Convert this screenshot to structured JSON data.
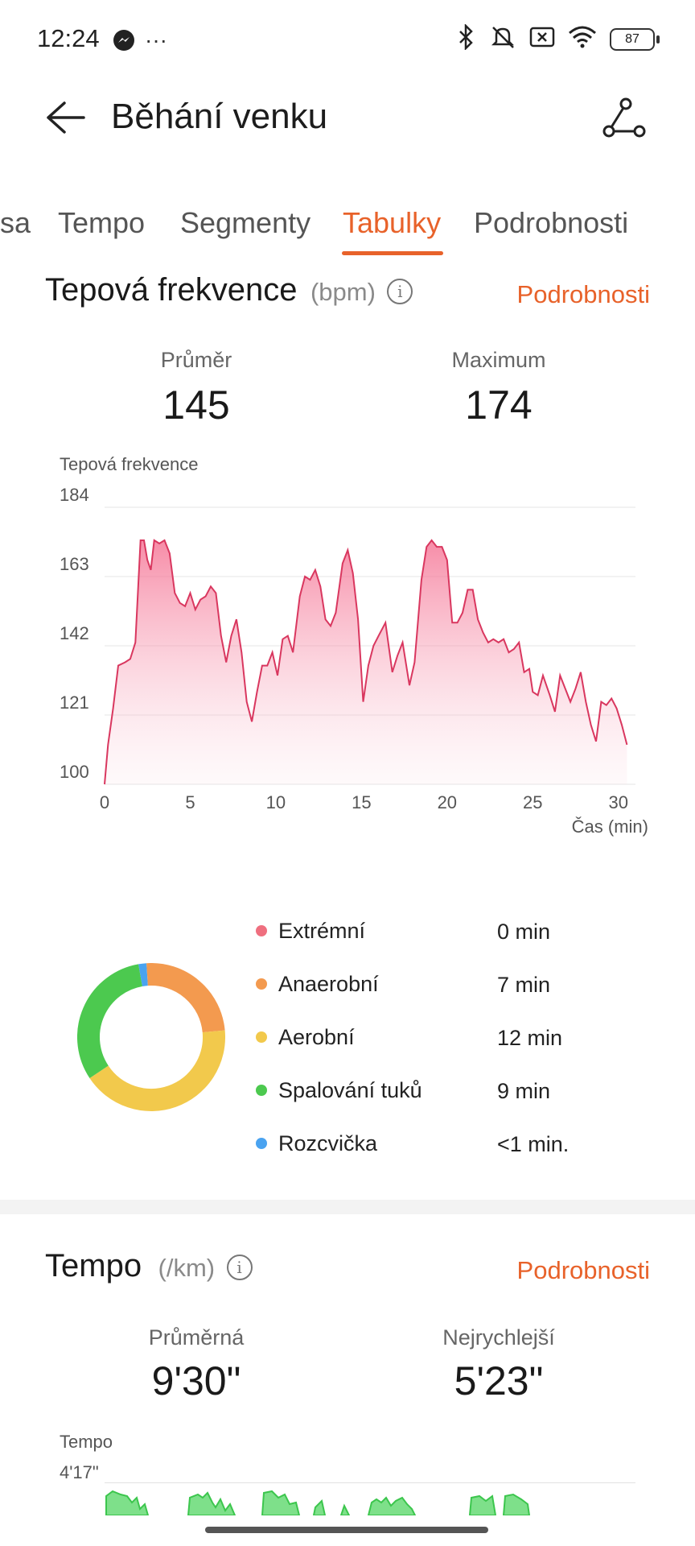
{
  "status": {
    "time": "12:24",
    "battery": "87"
  },
  "header": {
    "title": "Běhání venku"
  },
  "tabs": [
    "sa",
    "Tempo",
    "Segmenty",
    "Tabulky",
    "Podrobnosti"
  ],
  "heart": {
    "title": "Tepová frekvence",
    "unit": "(bpm)",
    "details_link": "Podrobnosti",
    "avg_label": "Průměr",
    "avg_value": "145",
    "max_label": "Maximum",
    "max_value": "174",
    "chart_caption": "Tepová frekvence",
    "x_unit": "Čas (min)"
  },
  "zones": [
    {
      "label": "Extrémní",
      "value": "0 min",
      "color": "#ef6f7f"
    },
    {
      "label": "Anaerobní",
      "value": "7 min",
      "color": "#f39a4f"
    },
    {
      "label": "Aerobní",
      "value": "12 min",
      "color": "#f2c94c"
    },
    {
      "label": "Spalování tuků",
      "value": "9 min",
      "color": "#4cc94f"
    },
    {
      "label": "Rozcvička",
      "value": "<1 min.",
      "color": "#4aa3f0"
    }
  ],
  "pace": {
    "title": "Tempo",
    "unit": "(/km)",
    "details_link": "Podrobnosti",
    "avg_label": "Průměrná",
    "avg_value": "9'30\"",
    "fast_label": "Nejrychlejší",
    "fast_value": "5'23\"",
    "chart_caption": "Tempo",
    "top_tick": "4'17\""
  },
  "chart_data": [
    {
      "type": "area",
      "title": "Tepová frekvence",
      "xlabel": "Čas (min)",
      "ylabel": "",
      "xlim": [
        0,
        31
      ],
      "ylim": [
        100,
        184
      ],
      "y_ticks": [
        184,
        163,
        142,
        121,
        100
      ],
      "x_ticks": [
        0,
        5,
        10,
        15,
        20,
        25,
        30
      ],
      "color": "#e0456e",
      "points": [
        [
          0,
          100
        ],
        [
          0.2,
          112
        ],
        [
          0.5,
          123
        ],
        [
          0.8,
          136
        ],
        [
          1.2,
          137
        ],
        [
          1.5,
          138
        ],
        [
          1.8,
          143
        ],
        [
          2.1,
          174
        ],
        [
          2.3,
          174
        ],
        [
          2.5,
          168
        ],
        [
          2.7,
          165
        ],
        [
          2.9,
          174
        ],
        [
          3.2,
          173
        ],
        [
          3.5,
          174
        ],
        [
          3.8,
          170
        ],
        [
          4.1,
          158
        ],
        [
          4.4,
          155
        ],
        [
          4.7,
          154
        ],
        [
          5.0,
          158
        ],
        [
          5.3,
          153
        ],
        [
          5.6,
          156
        ],
        [
          5.9,
          157
        ],
        [
          6.2,
          160
        ],
        [
          6.5,
          158
        ],
        [
          6.8,
          145
        ],
        [
          7.1,
          137
        ],
        [
          7.4,
          145
        ],
        [
          7.7,
          150
        ],
        [
          8.0,
          140
        ],
        [
          8.3,
          125
        ],
        [
          8.6,
          119
        ],
        [
          8.9,
          128
        ],
        [
          9.2,
          136
        ],
        [
          9.5,
          136
        ],
        [
          9.8,
          140
        ],
        [
          10.1,
          133
        ],
        [
          10.4,
          144
        ],
        [
          10.7,
          145
        ],
        [
          11.0,
          140
        ],
        [
          11.4,
          157
        ],
        [
          11.7,
          163
        ],
        [
          12.0,
          162
        ],
        [
          12.3,
          165
        ],
        [
          12.6,
          160
        ],
        [
          12.9,
          150
        ],
        [
          13.2,
          148
        ],
        [
          13.5,
          152
        ],
        [
          13.9,
          167
        ],
        [
          14.2,
          171
        ],
        [
          14.5,
          164
        ],
        [
          14.8,
          150
        ],
        [
          15.1,
          125
        ],
        [
          15.4,
          136
        ],
        [
          15.7,
          142
        ],
        [
          16.0,
          145
        ],
        [
          16.4,
          149
        ],
        [
          16.8,
          134
        ],
        [
          17.1,
          139
        ],
        [
          17.4,
          143
        ],
        [
          17.8,
          130
        ],
        [
          18.1,
          137
        ],
        [
          18.5,
          162
        ],
        [
          18.8,
          172
        ],
        [
          19.1,
          174
        ],
        [
          19.4,
          172
        ],
        [
          19.7,
          172
        ],
        [
          20.0,
          168
        ],
        [
          20.3,
          149
        ],
        [
          20.6,
          149
        ],
        [
          20.9,
          152
        ],
        [
          21.2,
          159
        ],
        [
          21.5,
          159
        ],
        [
          21.8,
          150
        ],
        [
          22.1,
          146
        ],
        [
          22.4,
          143
        ],
        [
          22.7,
          144
        ],
        [
          23.0,
          143
        ],
        [
          23.3,
          144
        ],
        [
          23.6,
          140
        ],
        [
          23.9,
          141
        ],
        [
          24.2,
          143
        ],
        [
          24.5,
          134
        ],
        [
          24.8,
          135
        ],
        [
          25.0,
          128
        ],
        [
          25.3,
          127
        ],
        [
          25.6,
          133
        ],
        [
          26.0,
          127
        ],
        [
          26.3,
          122
        ],
        [
          26.6,
          133
        ],
        [
          26.9,
          129
        ],
        [
          27.2,
          125
        ],
        [
          27.5,
          129
        ],
        [
          27.8,
          134
        ],
        [
          28.1,
          125
        ],
        [
          28.4,
          118
        ],
        [
          28.7,
          113
        ],
        [
          29.0,
          125
        ],
        [
          29.3,
          124
        ],
        [
          29.6,
          126
        ],
        [
          29.9,
          123
        ],
        [
          30.2,
          118
        ],
        [
          30.5,
          112
        ]
      ]
    },
    {
      "type": "pie",
      "title": "",
      "categories": [
        "Extrémní",
        "Anaerobní",
        "Aerobní",
        "Spalování tuků",
        "Rozcvička"
      ],
      "values": [
        0,
        7,
        12,
        9,
        0.5
      ],
      "colors": [
        "#ef6f7f",
        "#f39a4f",
        "#f2c94c",
        "#4cc94f",
        "#4aa3f0"
      ],
      "donut": true
    }
  ]
}
